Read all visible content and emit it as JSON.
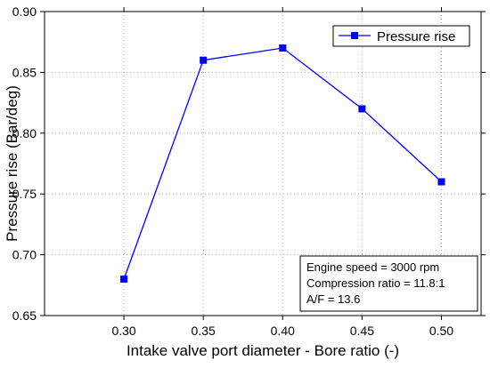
{
  "chart_data": {
    "type": "line",
    "xlabel": "Intake valve port diameter - Bore ratio (-)",
    "ylabel": "Pressure rise (Bar/deg)",
    "xlim": [
      0.25,
      0.525
    ],
    "ylim": [
      0.65,
      0.9
    ],
    "x_ticks": [
      "0.30",
      "0.35",
      "0.40",
      "0.45",
      "0.50"
    ],
    "x_tick_values": [
      0.3,
      0.35,
      0.4,
      0.45,
      0.5
    ],
    "y_ticks": [
      "0.65",
      "0.70",
      "0.75",
      "0.80",
      "0.85",
      "0.90"
    ],
    "y_tick_values": [
      0.65,
      0.7,
      0.75,
      0.8,
      0.85,
      0.9
    ],
    "grid": true,
    "grid_style": "dotted",
    "legend_position": "top-right",
    "series": [
      {
        "name": "Pressure rise",
        "color": "#0000FF",
        "marker": "square",
        "x": [
          0.3,
          0.35,
          0.4,
          0.45,
          0.5
        ],
        "y": [
          0.68,
          0.86,
          0.87,
          0.82,
          0.76
        ]
      }
    ],
    "annotation_lines": [
      "Engine speed = 3000 rpm",
      "Compression ratio = 11.8:1",
      "A/F = 13.6"
    ]
  }
}
